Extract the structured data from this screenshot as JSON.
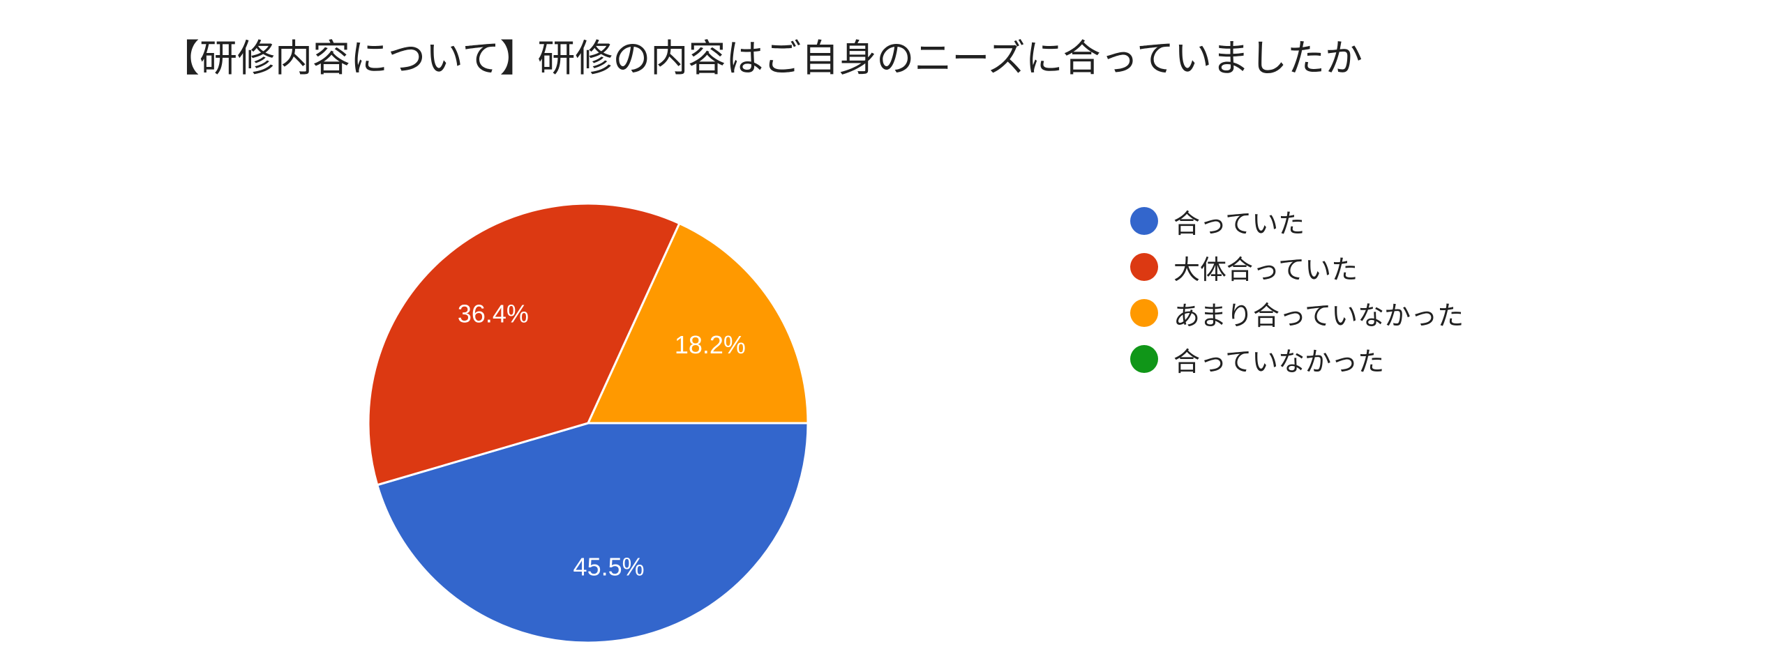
{
  "chart_data": {
    "type": "pie",
    "title": "【研修内容について】研修の内容はご自身のニーズに合っていましたか",
    "legend_position": "right",
    "slices": [
      {
        "label": "合っていた",
        "value": 45.5,
        "display": "45.5%",
        "color": "#3366cc"
      },
      {
        "label": "大体合っていた",
        "value": 36.4,
        "display": "36.4%",
        "color": "#dc3912"
      },
      {
        "label": "あまり合っていなかった",
        "value": 18.2,
        "display": "18.2%",
        "color": "#ff9900"
      },
      {
        "label": "合っていなかった",
        "value": 0,
        "display": "",
        "color": "#109618"
      }
    ]
  }
}
